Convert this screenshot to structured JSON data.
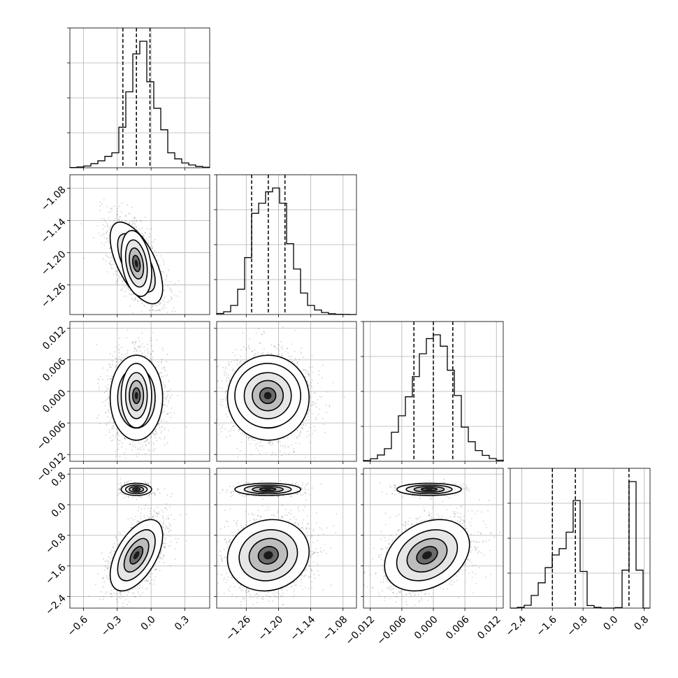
{
  "chart_data": {
    "type": "corner",
    "title": "",
    "grid": true,
    "parameters": [
      {
        "label": "",
        "range": [
          -0.72,
          0.52
        ],
        "ticks": [
          -0.6,
          -0.3,
          0.0,
          0.3
        ],
        "tick_labels": [
          "−0.6",
          "−0.3",
          "0.0",
          "0.3"
        ],
        "quantiles": [
          -0.25,
          -0.13,
          -0.01
        ],
        "hist_bins": [
          -0.72,
          0.52
        ],
        "hist_counts": [
          0.002,
          0.006,
          0.014,
          0.032,
          0.055,
          0.09,
          0.118,
          0.32,
          0.6,
          0.9,
          1.0,
          0.68,
          0.47,
          0.3,
          0.118,
          0.07,
          0.038,
          0.022,
          0.01,
          0.004
        ]
      },
      {
        "label": "",
        "range": [
          -1.315,
          -1.055
        ],
        "ticks": [
          -1.26,
          -1.2,
          -1.14,
          -1.08
        ],
        "tick_labels": [
          "−1.26",
          "−1.20",
          "−1.14",
          "−1.08"
        ],
        "quantiles": [
          -1.25,
          -1.219,
          -1.188
        ],
        "hist_bins": [
          -1.315,
          -1.055
        ],
        "hist_counts": [
          0.008,
          0.022,
          0.072,
          0.2,
          0.45,
          0.8,
          0.88,
          0.97,
          1.0,
          0.88,
          0.56,
          0.36,
          0.17,
          0.072,
          0.036,
          0.016,
          0.006,
          0.002,
          0.001,
          0.0
        ]
      },
      {
        "label": "",
        "range": [
          -0.0133,
          0.0133
        ],
        "ticks": [
          -0.012,
          -0.006,
          0.0,
          0.006,
          0.012
        ],
        "tick_labels": [
          "−0.012",
          "−0.006",
          "0.000",
          "0.006",
          "0.012"
        ],
        "quantiles": [
          -0.0037,
          0.0,
          0.0037
        ],
        "hist_bins": [
          -0.0133,
          0.0133
        ],
        "hist_counts": [
          0.006,
          0.02,
          0.05,
          0.1,
          0.23,
          0.36,
          0.51,
          0.67,
          0.85,
          0.97,
          1.0,
          0.91,
          0.72,
          0.52,
          0.27,
          0.155,
          0.085,
          0.047,
          0.022,
          0.008
        ]
      },
      {
        "label": "",
        "range": [
          -2.7,
          0.95
        ],
        "ticks": [
          -2.4,
          -1.6,
          -0.8,
          0.0,
          0.8
        ],
        "tick_labels": [
          "−2.4",
          "−1.6",
          "−0.8",
          "0.0",
          "0.8"
        ],
        "quantiles": [
          -1.6,
          -1.0,
          0.4
        ],
        "hist_bins": [
          -2.7,
          0.95
        ],
        "hist_counts": [
          0.0,
          0.006,
          0.022,
          0.1,
          0.2,
          0.32,
          0.42,
          0.47,
          0.6,
          0.85,
          0.29,
          0.02,
          0.006,
          0.0,
          0.0,
          0.004,
          0.3,
          1.0,
          0.3,
          0.0
        ]
      }
    ],
    "components": [
      {
        "mean": [
          -0.13,
          -1.219,
          -0.0012,
          -1.32
        ],
        "sd": [
          0.095,
          0.031,
          0.0033,
          0.38
        ],
        "rho": [
          [
            0,
            1,
            -0.62
          ],
          [
            0,
            3,
            0.55
          ],
          [
            1,
            3,
            0.1
          ],
          [
            2,
            3,
            0.3
          ]
        ],
        "weight": 0.8
      },
      {
        "mean": [
          -0.13,
          -1.22,
          -0.0008,
          0.4
        ],
        "sd": [
          0.055,
          0.025,
          0.0025,
          0.065
        ],
        "rho": [
          [
            0,
            1,
            -0.3
          ]
        ],
        "weight": 0.2
      }
    ]
  }
}
